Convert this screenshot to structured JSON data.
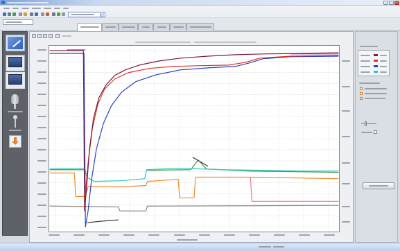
{
  "colors": {
    "titlebar": "#c9d9ef",
    "sidebar": "#5e6268",
    "tab_active": "#ffffff",
    "plot_bg": "#ffffff",
    "taskbar": "#b9cfee",
    "window_bg": "#d6dae1"
  },
  "window_controls": {
    "icons": [
      "minimize-icon",
      "maximize-icon",
      "close-icon"
    ]
  },
  "sidebar": {
    "items": [
      {
        "icon": "edit-icon"
      },
      {
        "icon": "monitor-icon"
      },
      {
        "icon": "monitor-icon"
      },
      {
        "icon": "probe-icon"
      },
      {
        "icon": "sensor-icon"
      },
      {
        "icon": "download-icon"
      }
    ]
  },
  "tabs": {
    "active_index": 0
  },
  "channel_table": {
    "rows": [
      {
        "color": "#7b1c3a"
      },
      {
        "color": "#d9342b"
      },
      {
        "color": "#2b3fbf"
      },
      {
        "color": "#2fc4c0"
      }
    ]
  },
  "chart_data": {
    "type": "line",
    "xlim": [
      0,
      100
    ],
    "ylim": [
      0,
      100
    ],
    "grid": true,
    "xticks": [
      1.9,
      10.5,
      19.1,
      27.7,
      36.3,
      44.9,
      53.5,
      62.1,
      70.7,
      79.3,
      87.9,
      96.5
    ],
    "yticks": [
      2.6,
      8.5,
      14.4,
      20.4,
      26.3,
      32.2,
      38.1,
      44.1,
      50.0,
      55.9,
      61.9,
      67.8,
      73.7,
      79.6,
      85.6,
      91.5,
      97.4
    ],
    "y2ticks": [
      5.6,
      13.7,
      25.9,
      37.0,
      51.1,
      64.8,
      77.8,
      91.5
    ],
    "series": [
      {
        "color": "#8c8a88",
        "points": [
          [
            0,
            13.7
          ],
          [
            23.8,
            13.3
          ],
          [
            24.3,
            11.1
          ],
          [
            33.3,
            11.1
          ],
          [
            33.8,
            13.7
          ],
          [
            100,
            14.1
          ]
        ]
      },
      {
        "color": "#e07a96",
        "points": [
          [
            69.5,
            29.3
          ],
          [
            70.0,
            16.3
          ],
          [
            100,
            16.3
          ]
        ]
      },
      {
        "color": "#f0892c",
        "points": [
          [
            0,
            31.5
          ],
          [
            8.6,
            31.5
          ],
          [
            9.0,
            18.9
          ],
          [
            12.4,
            18.9
          ],
          [
            13.3,
            24.1
          ],
          [
            25.0,
            24.1
          ],
          [
            33.3,
            24.8
          ],
          [
            33.8,
            27.0
          ],
          [
            44.5,
            28.1
          ],
          [
            45.0,
            18.1
          ],
          [
            50.0,
            18.1
          ],
          [
            50.5,
            29.3
          ],
          [
            69.0,
            29.3
          ],
          [
            100,
            28.5
          ]
        ]
      },
      {
        "color": "#3f9b3f",
        "points": [
          [
            0,
            33.3
          ],
          [
            12.1,
            33.3
          ],
          null,
          [
            33.6,
            33.0
          ],
          [
            48.8,
            33.3
          ],
          [
            51.4,
            38.5
          ],
          [
            54.3,
            33.7
          ],
          [
            69.0,
            32.6
          ],
          [
            100,
            31.9
          ]
        ]
      },
      {
        "color": "#2fc4c0",
        "points": [
          [
            0,
            33.7
          ],
          [
            12.1,
            34.1
          ],
          [
            12.9,
            29.3
          ],
          [
            15.5,
            27.0
          ],
          [
            25.0,
            27.4
          ],
          [
            32.9,
            28.5
          ],
          [
            33.6,
            33.3
          ],
          [
            45.2,
            34.1
          ],
          [
            59.5,
            33.3
          ],
          [
            73.8,
            33.0
          ],
          [
            85.7,
            32.6
          ],
          [
            100,
            32.6
          ]
        ]
      },
      {
        "color": "#3a3a3a",
        "points": [
          [
            13.1,
            4.8
          ],
          [
            17.9,
            5.6
          ],
          [
            23.8,
            6.3
          ],
          null,
          [
            49.5,
            40.0
          ],
          [
            54.8,
            35.2
          ]
        ]
      },
      {
        "color": "#9b4fc4",
        "points": [
          [
            6.0,
            97.8
          ],
          [
            12.4,
            97.8
          ],
          null,
          [
            83.3,
            95.6
          ],
          [
            100,
            95.6
          ]
        ]
      },
      {
        "color": "#2b3fbf",
        "points": [
          [
            0,
            95.9
          ],
          [
            11.9,
            95.9
          ],
          [
            12.4,
            2.6
          ],
          [
            13.3,
            11.1
          ],
          [
            14.5,
            27.8
          ],
          [
            16.2,
            44.4
          ],
          [
            18.6,
            58.1
          ],
          [
            21.4,
            67.8
          ],
          [
            25.0,
            75.2
          ],
          [
            29.8,
            80.7
          ],
          [
            36.9,
            84.4
          ],
          [
            45.2,
            87.0
          ],
          [
            54.8,
            88.1
          ],
          [
            64.3,
            88.9
          ],
          [
            69.0,
            90.7
          ],
          [
            73.8,
            93.0
          ],
          [
            83.3,
            94.1
          ],
          [
            100,
            94.4
          ]
        ]
      },
      {
        "color": "#d9342b",
        "points": [
          [
            12.1,
            15.9
          ],
          [
            13.3,
            37.0
          ],
          [
            14.8,
            55.6
          ],
          [
            16.7,
            68.5
          ],
          [
            19.0,
            76.7
          ],
          [
            22.6,
            82.2
          ],
          [
            27.4,
            85.6
          ],
          [
            34.5,
            87.8
          ],
          [
            42.9,
            88.9
          ],
          [
            52.4,
            89.3
          ],
          [
            61.9,
            89.6
          ],
          [
            67.9,
            91.1
          ],
          [
            72.6,
            93.3
          ],
          [
            83.3,
            94.4
          ],
          [
            100,
            94.8
          ]
        ]
      },
      {
        "color": "#7b1c3a",
        "points": [
          [
            0,
            97.4
          ],
          [
            11.7,
            97.4
          ],
          [
            12.1,
            11.1
          ],
          [
            12.9,
            25.9
          ],
          [
            13.8,
            44.4
          ],
          [
            15.2,
            61.1
          ],
          [
            17.1,
            72.2
          ],
          [
            19.5,
            78.9
          ],
          [
            22.6,
            84.1
          ],
          [
            26.2,
            87.0
          ],
          [
            31.0,
            89.6
          ],
          [
            38.1,
            91.9
          ],
          [
            45.2,
            93.3
          ],
          [
            54.8,
            94.4
          ],
          [
            64.3,
            95.2
          ],
          [
            73.8,
            95.6
          ],
          [
            88.1,
            95.9
          ],
          [
            100,
            96.3
          ]
        ]
      }
    ]
  }
}
